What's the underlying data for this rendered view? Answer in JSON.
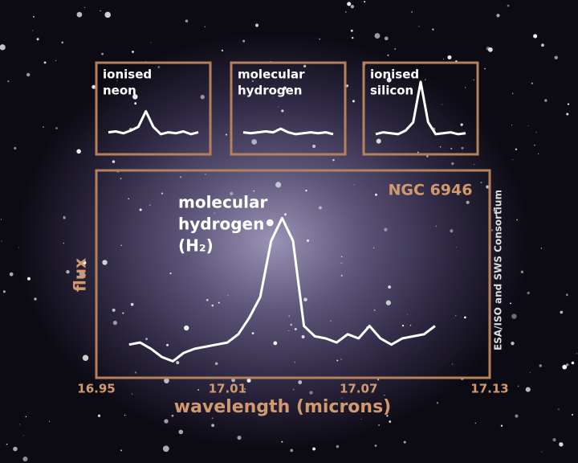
{
  "chart_data": [
    {
      "type": "line",
      "annotation": "NGC 6946",
      "peak_label": [
        "molecular",
        "hydrogen",
        "(H₂)"
      ],
      "xlabel": "wavelength (microns)",
      "ylabel": "flux",
      "x": [
        16.965,
        16.97,
        16.975,
        16.98,
        16.985,
        16.99,
        16.995,
        17.0,
        17.005,
        17.01,
        17.015,
        17.02,
        17.025,
        17.03,
        17.035,
        17.04,
        17.045,
        17.05,
        17.055,
        17.06,
        17.065,
        17.07,
        17.075,
        17.08,
        17.085,
        17.09,
        17.095,
        17.1,
        17.105
      ],
      "values": [
        16,
        17,
        14,
        10,
        8,
        12,
        14,
        15,
        16,
        17,
        21,
        29,
        39,
        66,
        77,
        66,
        25,
        20,
        19,
        17,
        21,
        19,
        25,
        19,
        16,
        19,
        20,
        21,
        25
      ],
      "color": "#ffffff",
      "xlim": [
        16.95,
        17.13
      ],
      "xticks": [
        16.95,
        17.01,
        17.07,
        17.13
      ],
      "ylim": [
        0,
        100
      ]
    },
    {
      "type": "line",
      "title": [
        "ionised",
        "neon"
      ],
      "color": "#ffffff",
      "values": [
        24,
        25,
        23,
        26,
        30,
        47,
        30,
        22,
        24,
        23,
        25,
        22,
        24
      ],
      "ylim": [
        0,
        100
      ]
    },
    {
      "type": "line",
      "title": [
        "molecular",
        "hydrogen"
      ],
      "color": "#ffffff",
      "values": [
        24,
        23,
        24,
        25,
        24,
        28,
        24,
        22,
        23,
        24,
        23,
        24,
        22
      ],
      "ylim": [
        0,
        100
      ]
    },
    {
      "type": "line",
      "title": [
        "ionised",
        "silicon"
      ],
      "color": "#ffffff",
      "values": [
        22,
        24,
        23,
        22,
        26,
        35,
        79,
        35,
        22,
        23,
        24,
        22,
        23
      ],
      "ylim": [
        0,
        100
      ]
    }
  ],
  "credit": "ESA/ISO and SWS Consortium"
}
